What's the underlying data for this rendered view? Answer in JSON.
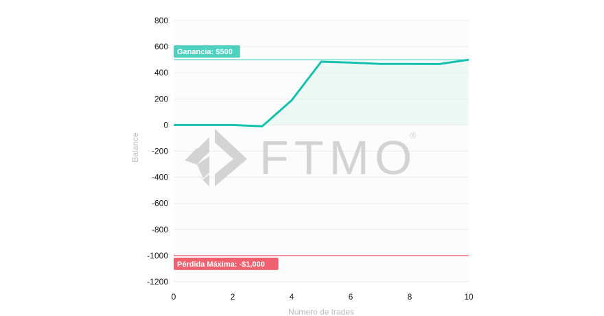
{
  "chart_data": {
    "type": "line",
    "xlabel": "Número de trades",
    "ylabel": "Balance",
    "xlim": [
      0,
      10
    ],
    "ylim": [
      -1200,
      800
    ],
    "x_ticks": [
      0,
      2,
      4,
      6,
      8,
      10
    ],
    "y_ticks": [
      800,
      600,
      400,
      200,
      0,
      -200,
      -400,
      -600,
      -800,
      -1000,
      -1200
    ],
    "grid": true,
    "series": [
      {
        "x": [
          0,
          1,
          2,
          3,
          4,
          5,
          6,
          7,
          8,
          9,
          10
        ],
        "values": [
          0,
          0,
          0,
          -10,
          190,
          485,
          478,
          468,
          468,
          467,
          500
        ],
        "color": "#13c2ae"
      }
    ],
    "annotations": [
      {
        "label": "Ganancia: $500",
        "y": 500,
        "color": "#4fd1c0"
      },
      {
        "label": "Pérdida Máxima: -$1,000",
        "y": -1000,
        "color": "#f0616f"
      }
    ],
    "watermark": {
      "text": "FTMO",
      "registered": "®",
      "color": "#cfcfcf"
    }
  }
}
